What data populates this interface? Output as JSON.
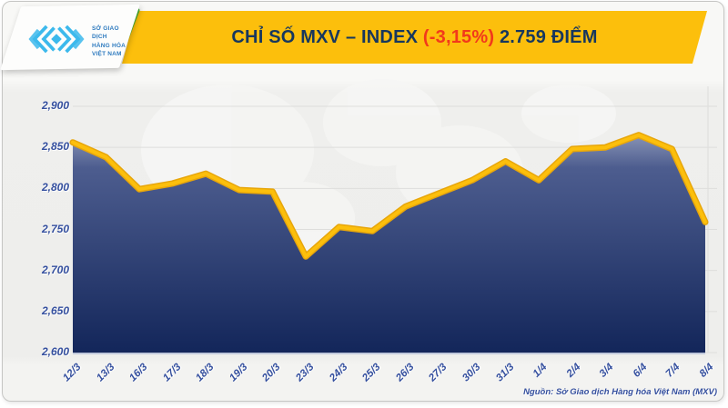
{
  "logo": {
    "lines": [
      "SỞ GIAO DỊCH",
      "HÀNG HÓA",
      "VIỆT NAM"
    ],
    "mark_color": "#3cb9ec",
    "text_color": "#2f7bbf",
    "accent_color": "#46b332"
  },
  "header": {
    "title_main": "CHỈ SỐ MXV – INDEX ",
    "title_change": "(-3,15%)",
    "title_value": " 2.759 ĐIỂM",
    "banner_color": "#fcbf0c",
    "title_color": "#17375e",
    "change_color": "#f2391b"
  },
  "chart_data": {
    "type": "area",
    "title": "CHỈ SỐ MXV – INDEX (-3,15%) 2.759 ĐIỂM",
    "x": [
      "12/3",
      "13/3",
      "16/3",
      "17/3",
      "18/3",
      "19/3",
      "20/3",
      "23/3",
      "24/3",
      "25/3",
      "26/3",
      "27/3",
      "30/3",
      "31/3",
      "1/4",
      "2/4",
      "3/4",
      "6/4",
      "7/4",
      "8/4"
    ],
    "series": [
      {
        "name": "MXV-Index",
        "values": [
          2856,
          2838,
          2799,
          2806,
          2818,
          2798,
          2796,
          2717,
          2753,
          2748,
          2778,
          2794,
          2810,
          2833,
          2810,
          2848,
          2850,
          2865,
          2848,
          2759
        ]
      }
    ],
    "ylim": [
      2600,
      2900
    ],
    "y_ticks": [
      "2,900",
      "2,850",
      "2,800",
      "2,750",
      "2,700",
      "2,650",
      "2,600"
    ],
    "grid": true,
    "legend": "none",
    "line_color": "#fcbf0c",
    "line_edge_color": "#e7a60b",
    "area_gradient": [
      "#8893b5",
      "#4d5d8f",
      "#13265a"
    ],
    "grid_color": "#dededc",
    "baseline_color": "#b4bdd8"
  },
  "source": {
    "text": "Nguồn: Sở Giao dịch Hàng hóa Việt Nam (MXV)"
  }
}
